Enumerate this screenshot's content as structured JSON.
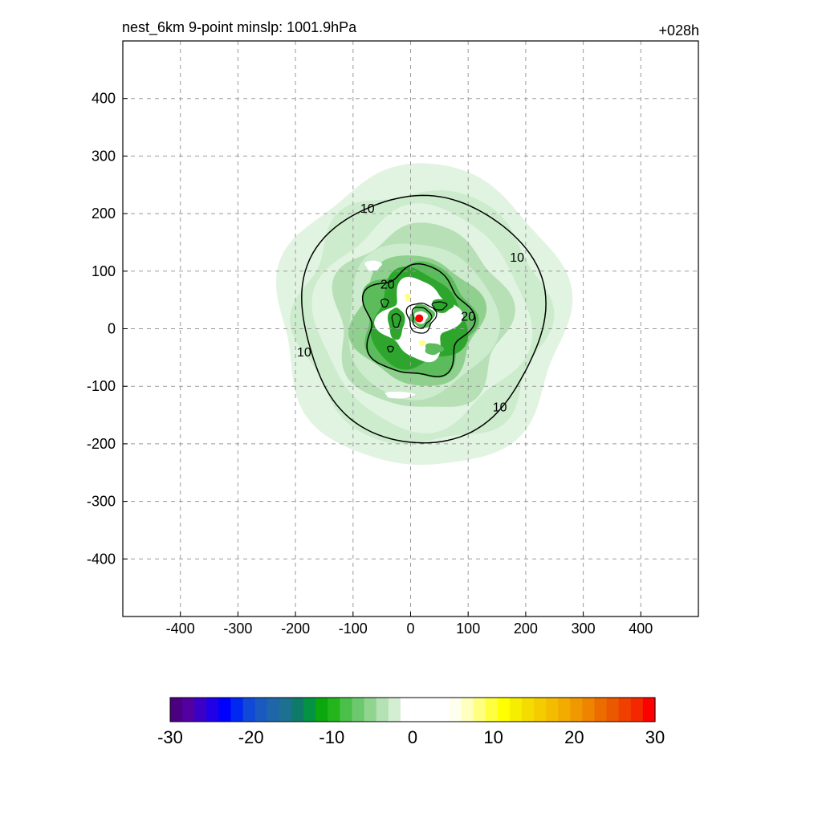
{
  "chart_data": {
    "type": "heatmap",
    "title_left": "nest_6km  9-point minslp: 1001.9hPa",
    "title_right": "+028h",
    "xlim": [
      -500,
      500
    ],
    "ylim": [
      -500,
      500
    ],
    "grid": true,
    "x_ticks": [
      -400,
      -300,
      -200,
      -100,
      0,
      100,
      200,
      300,
      400
    ],
    "y_ticks": [
      400,
      300,
      200,
      100,
      0,
      -100,
      -200,
      -300,
      -400
    ],
    "center_marker": {
      "x": 15,
      "y": 18,
      "color": "#ff0000"
    },
    "contour_lines": [
      {
        "level": 10,
        "label": "10",
        "radius_x": 210,
        "radius_y": 215,
        "cx": 20,
        "cy": 20
      },
      {
        "level": 20,
        "label": "20",
        "radius_x": 90,
        "radius_y": 95,
        "cx": 10,
        "cy": 12
      }
    ],
    "contour_labels": [
      {
        "text": "10",
        "x": -75,
        "y": 210
      },
      {
        "text": "10",
        "x": 185,
        "y": 125
      },
      {
        "text": "10",
        "x": -185,
        "y": -40
      },
      {
        "text": "10",
        "x": 155,
        "y": -135
      },
      {
        "text": "20",
        "x": -40,
        "y": 78
      },
      {
        "text": "20",
        "x": 100,
        "y": 22
      }
    ],
    "colorbar": {
      "min": -30,
      "max": 30,
      "tick_labels": [
        "-30",
        "-20",
        "-10",
        "0",
        "10",
        "20",
        "30"
      ],
      "colors": [
        "#4b0082",
        "#5200a0",
        "#3a00c8",
        "#2000e6",
        "#0000ff",
        "#0028f0",
        "#1048d8",
        "#1a5ac0",
        "#1e66a8",
        "#1e7090",
        "#107a6a",
        "#049244",
        "#0aa80e",
        "#24b41c",
        "#4ac04a",
        "#6cc86c",
        "#90d490",
        "#b4e2b4",
        "#d4eed4",
        "#ffffff",
        "#ffffff",
        "#ffffff",
        "#ffffff",
        "#fffff0",
        "#ffffc0",
        "#ffff80",
        "#ffff40",
        "#ffff00",
        "#f6ee00",
        "#f4dc00",
        "#f4cc00",
        "#f4bc00",
        "#f2ac00",
        "#f09800",
        "#ee8400",
        "#ec6c00",
        "#ea5800",
        "#f04000",
        "#f42800",
        "#ff0000"
      ]
    },
    "field_colors": {
      "outer": "#e1f4e1",
      "ring": "#cdebcd",
      "band": "#b7e0b7",
      "inner1": "#8fd08f",
      "inner2": "#5cbc5c",
      "inner3": "#2ea62e",
      "core": "#ffffff",
      "yellow": "#ffff8c"
    }
  }
}
